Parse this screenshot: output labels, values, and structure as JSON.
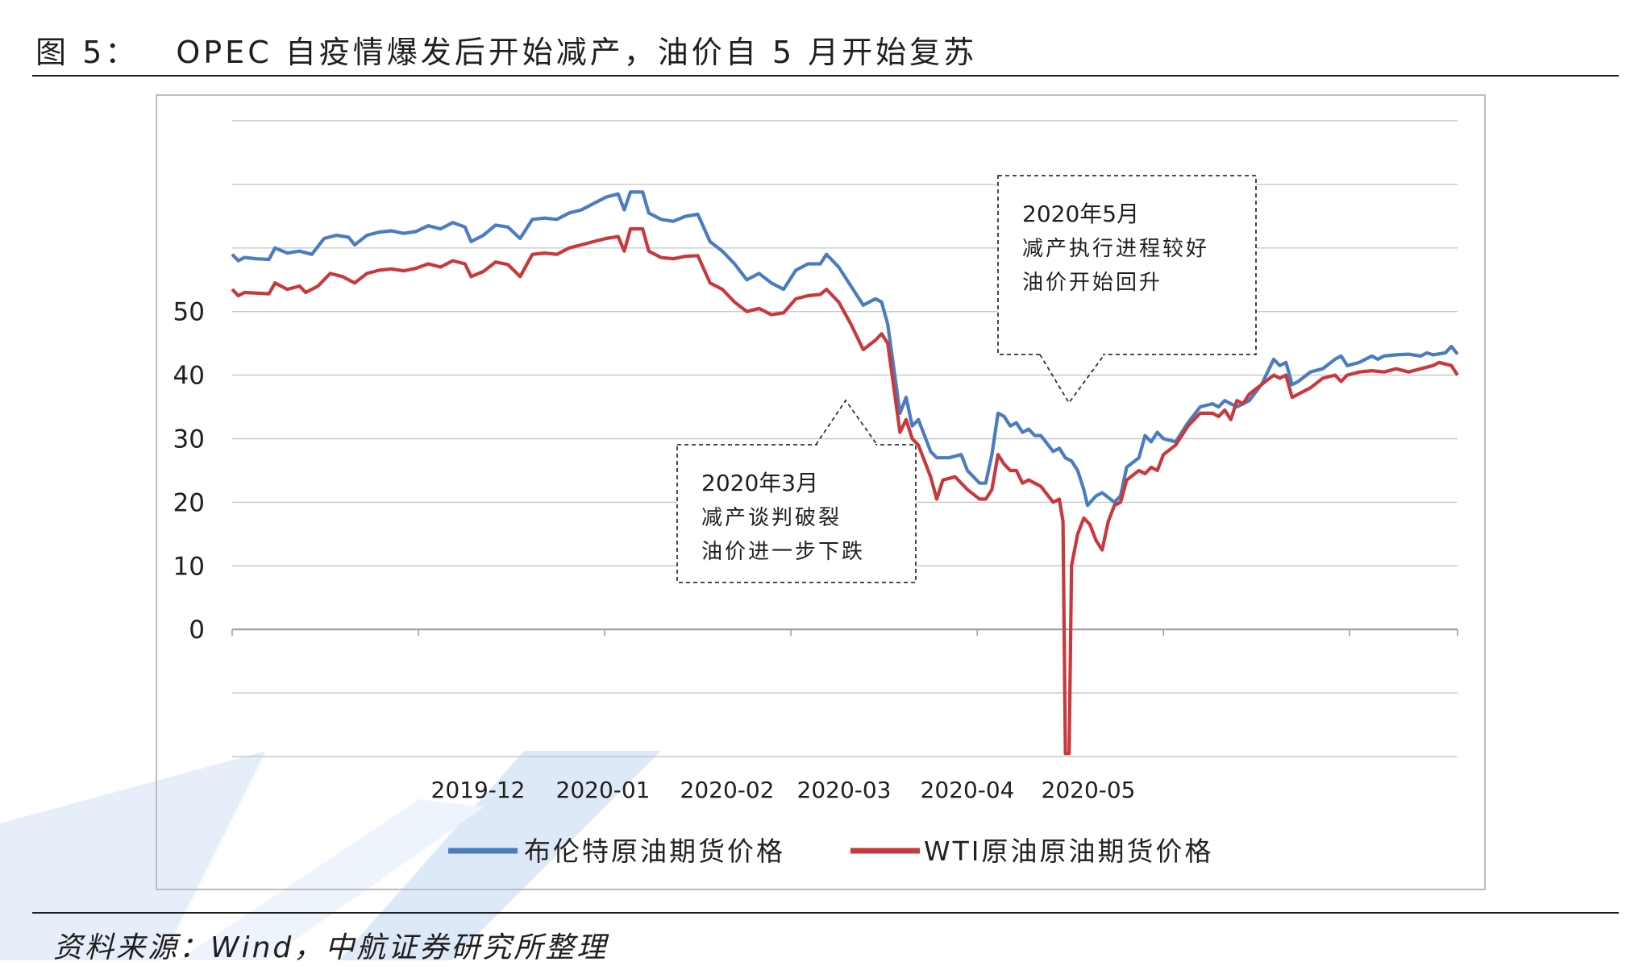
{
  "figure": {
    "number_label": "图 5：",
    "title": "OPEC 自疫情爆发后开始减产，油价自 5 月开始复苏"
  },
  "source_note": "资料来源：Wind，中航证券研究所整理",
  "colors": {
    "brent": "#4a7cc0",
    "wti": "#c8383c",
    "grid": "#c8c8c8",
    "axis": "#9a9a9a"
  },
  "chart_data": {
    "type": "line",
    "title": "",
    "xlabel": "",
    "ylabel": "",
    "ylim": [
      -20,
      80
    ],
    "grid": true,
    "legend_placement": "bottom",
    "y_ticks": [
      {
        "v": 80,
        "label": "",
        "faded": true
      },
      {
        "v": 70,
        "label": "",
        "faded": true
      },
      {
        "v": 60,
        "label": "",
        "faded": true
      },
      {
        "v": 50,
        "label": "50"
      },
      {
        "v": 40,
        "label": "40"
      },
      {
        "v": 30,
        "label": "30"
      },
      {
        "v": 20,
        "label": "20"
      },
      {
        "v": 10,
        "label": "10"
      },
      {
        "v": 0,
        "label": "0"
      },
      {
        "v": -10,
        "label": "",
        "faded": true
      },
      {
        "v": -20,
        "label": "",
        "faded": true
      }
    ],
    "x_ticks": [
      {
        "x": 0,
        "label": "",
        "faded": true
      },
      {
        "x": 1,
        "label": "",
        "faded": true
      },
      {
        "x": 2,
        "label": "2019-12"
      },
      {
        "x": 3,
        "label": "2020-01"
      },
      {
        "x": 4,
        "label": "2020-02"
      },
      {
        "x": 5,
        "label": "2020-03"
      },
      {
        "x": 6,
        "label": "2020-04"
      },
      {
        "x": 7,
        "label": "2020-05"
      }
    ],
    "x_range": [
      0,
      10
    ],
    "series": [
      {
        "name": "布伦特原油期货价格",
        "color": "#4a7cc0",
        "points": [
          [
            0.0,
            59.0
          ],
          [
            0.05,
            58.0
          ],
          [
            0.1,
            58.5
          ],
          [
            0.2,
            58.3
          ],
          [
            0.3,
            58.2
          ],
          [
            0.35,
            60.0
          ],
          [
            0.45,
            59.2
          ],
          [
            0.55,
            59.5
          ],
          [
            0.65,
            59.0
          ],
          [
            0.75,
            61.5
          ],
          [
            0.85,
            62.0
          ],
          [
            0.95,
            61.7
          ],
          [
            1.0,
            60.5
          ],
          [
            1.1,
            62.0
          ],
          [
            1.2,
            62.5
          ],
          [
            1.3,
            62.7
          ],
          [
            1.4,
            62.3
          ],
          [
            1.5,
            62.6
          ],
          [
            1.6,
            63.5
          ],
          [
            1.7,
            63.0
          ],
          [
            1.8,
            64.0
          ],
          [
            1.9,
            63.3
          ],
          [
            1.95,
            61.0
          ],
          [
            2.05,
            62.0
          ],
          [
            2.15,
            63.6
          ],
          [
            2.25,
            63.3
          ],
          [
            2.35,
            61.5
          ],
          [
            2.45,
            64.5
          ],
          [
            2.55,
            64.7
          ],
          [
            2.65,
            64.5
          ],
          [
            2.75,
            65.5
          ],
          [
            2.85,
            66.0
          ],
          [
            2.95,
            67.0
          ],
          [
            3.05,
            68.0
          ],
          [
            3.15,
            68.5
          ],
          [
            3.2,
            66.0
          ],
          [
            3.25,
            68.8
          ],
          [
            3.35,
            68.8
          ],
          [
            3.4,
            65.5
          ],
          [
            3.5,
            64.5
          ],
          [
            3.6,
            64.2
          ],
          [
            3.7,
            65.0
          ],
          [
            3.8,
            65.3
          ],
          [
            3.9,
            61.0
          ],
          [
            4.0,
            59.5
          ],
          [
            4.1,
            57.5
          ],
          [
            4.2,
            55.0
          ],
          [
            4.3,
            56.0
          ],
          [
            4.4,
            54.5
          ],
          [
            4.5,
            53.5
          ],
          [
            4.6,
            56.5
          ],
          [
            4.7,
            57.5
          ],
          [
            4.8,
            57.5
          ],
          [
            4.85,
            59.0
          ],
          [
            4.95,
            57.0
          ],
          [
            5.05,
            54.0
          ],
          [
            5.15,
            51.0
          ],
          [
            5.25,
            52.0
          ],
          [
            5.3,
            51.5
          ],
          [
            5.35,
            48.0
          ],
          [
            5.45,
            34.0
          ],
          [
            5.5,
            36.5
          ],
          [
            5.55,
            32.0
          ],
          [
            5.6,
            33.0
          ],
          [
            5.7,
            28.0
          ],
          [
            5.75,
            27.0
          ],
          [
            5.85,
            27.0
          ],
          [
            5.95,
            27.5
          ],
          [
            6.0,
            25.0
          ],
          [
            6.1,
            23.0
          ],
          [
            6.15,
            23.0
          ],
          [
            6.2,
            27.5
          ],
          [
            6.25,
            34.0
          ],
          [
            6.3,
            33.5
          ],
          [
            6.35,
            32.0
          ],
          [
            6.4,
            32.5
          ],
          [
            6.45,
            31.0
          ],
          [
            6.5,
            31.5
          ],
          [
            6.55,
            30.5
          ],
          [
            6.6,
            30.5
          ],
          [
            6.7,
            28.0
          ],
          [
            6.75,
            28.5
          ],
          [
            6.8,
            27.0
          ],
          [
            6.85,
            26.5
          ],
          [
            6.9,
            25.0
          ],
          [
            6.95,
            22.0
          ],
          [
            6.98,
            19.5
          ],
          [
            7.05,
            21.0
          ],
          [
            7.1,
            21.5
          ],
          [
            7.2,
            20.0
          ],
          [
            7.25,
            21.0
          ],
          [
            7.3,
            25.5
          ],
          [
            7.4,
            27.0
          ],
          [
            7.45,
            30.5
          ],
          [
            7.5,
            29.5
          ],
          [
            7.55,
            31.0
          ],
          [
            7.6,
            30.0
          ],
          [
            7.7,
            29.5
          ],
          [
            7.8,
            32.5
          ],
          [
            7.9,
            35.0
          ],
          [
            8.0,
            35.5
          ],
          [
            8.05,
            35.0
          ],
          [
            8.1,
            36.0
          ],
          [
            8.15,
            35.5
          ],
          [
            8.2,
            35.0
          ],
          [
            8.25,
            35.5
          ],
          [
            8.3,
            36.0
          ],
          [
            8.4,
            38.5
          ],
          [
            8.5,
            42.5
          ],
          [
            8.55,
            41.5
          ],
          [
            8.6,
            42.0
          ],
          [
            8.65,
            38.5
          ],
          [
            8.7,
            39.0
          ],
          [
            8.8,
            40.5
          ],
          [
            8.9,
            41.0
          ],
          [
            9.0,
            42.5
          ],
          [
            9.05,
            43.0
          ],
          [
            9.1,
            41.5
          ],
          [
            9.2,
            42.0
          ],
          [
            9.3,
            43.0
          ],
          [
            9.35,
            42.5
          ],
          [
            9.4,
            43.0
          ],
          [
            9.5,
            43.2
          ],
          [
            9.6,
            43.3
          ],
          [
            9.7,
            43.0
          ],
          [
            9.75,
            43.5
          ],
          [
            9.8,
            43.2
          ],
          [
            9.9,
            43.5
          ],
          [
            9.95,
            44.5
          ],
          [
            10.0,
            43.3
          ]
        ]
      },
      {
        "name": "WTI原油原油期货价格",
        "color": "#c8383c",
        "points": [
          [
            0.0,
            53.5
          ],
          [
            0.05,
            52.5
          ],
          [
            0.1,
            53.0
          ],
          [
            0.2,
            52.9
          ],
          [
            0.3,
            52.8
          ],
          [
            0.35,
            54.5
          ],
          [
            0.45,
            53.5
          ],
          [
            0.55,
            54.0
          ],
          [
            0.6,
            53.0
          ],
          [
            0.7,
            54.0
          ],
          [
            0.8,
            56.0
          ],
          [
            0.9,
            55.5
          ],
          [
            1.0,
            54.5
          ],
          [
            1.1,
            56.0
          ],
          [
            1.2,
            56.5
          ],
          [
            1.3,
            56.7
          ],
          [
            1.4,
            56.4
          ],
          [
            1.5,
            56.8
          ],
          [
            1.6,
            57.5
          ],
          [
            1.7,
            57.0
          ],
          [
            1.8,
            58.0
          ],
          [
            1.9,
            57.5
          ],
          [
            1.95,
            55.5
          ],
          [
            2.05,
            56.3
          ],
          [
            2.15,
            57.8
          ],
          [
            2.25,
            57.4
          ],
          [
            2.35,
            55.5
          ],
          [
            2.45,
            59.0
          ],
          [
            2.55,
            59.2
          ],
          [
            2.65,
            59.0
          ],
          [
            2.75,
            60.0
          ],
          [
            2.85,
            60.5
          ],
          [
            2.95,
            61.0
          ],
          [
            3.05,
            61.5
          ],
          [
            3.15,
            61.8
          ],
          [
            3.2,
            59.5
          ],
          [
            3.25,
            63.0
          ],
          [
            3.35,
            63.0
          ],
          [
            3.4,
            59.5
          ],
          [
            3.5,
            58.5
          ],
          [
            3.6,
            58.3
          ],
          [
            3.7,
            58.7
          ],
          [
            3.8,
            58.8
          ],
          [
            3.9,
            54.5
          ],
          [
            4.0,
            53.5
          ],
          [
            4.1,
            51.5
          ],
          [
            4.2,
            50.0
          ],
          [
            4.3,
            50.5
          ],
          [
            4.4,
            49.5
          ],
          [
            4.5,
            49.8
          ],
          [
            4.6,
            52.0
          ],
          [
            4.7,
            52.5
          ],
          [
            4.8,
            52.7
          ],
          [
            4.85,
            53.5
          ],
          [
            4.95,
            51.5
          ],
          [
            5.05,
            48.0
          ],
          [
            5.15,
            44.0
          ],
          [
            5.25,
            45.5
          ],
          [
            5.3,
            46.5
          ],
          [
            5.35,
            45.0
          ],
          [
            5.45,
            31.0
          ],
          [
            5.5,
            33.0
          ],
          [
            5.55,
            30.0
          ],
          [
            5.6,
            29.0
          ],
          [
            5.7,
            24.0
          ],
          [
            5.75,
            20.5
          ],
          [
            5.8,
            23.5
          ],
          [
            5.9,
            24.0
          ],
          [
            6.0,
            22.0
          ],
          [
            6.1,
            20.5
          ],
          [
            6.15,
            20.5
          ],
          [
            6.2,
            22.0
          ],
          [
            6.25,
            27.5
          ],
          [
            6.3,
            26.0
          ],
          [
            6.35,
            25.0
          ],
          [
            6.4,
            25.0
          ],
          [
            6.45,
            23.0
          ],
          [
            6.5,
            23.5
          ],
          [
            6.55,
            23.0
          ],
          [
            6.6,
            22.5
          ],
          [
            6.7,
            20.0
          ],
          [
            6.75,
            20.5
          ],
          [
            6.78,
            17.0
          ],
          [
            6.8,
            -19.5
          ],
          [
            6.83,
            -19.5
          ],
          [
            6.85,
            10.0
          ],
          [
            6.9,
            15.0
          ],
          [
            6.95,
            17.5
          ],
          [
            7.0,
            16.5
          ],
          [
            7.05,
            14.0
          ],
          [
            7.1,
            12.5
          ],
          [
            7.15,
            17.0
          ],
          [
            7.2,
            19.5
          ],
          [
            7.25,
            20.0
          ],
          [
            7.3,
            23.5
          ],
          [
            7.4,
            25.0
          ],
          [
            7.45,
            24.5
          ],
          [
            7.5,
            25.5
          ],
          [
            7.55,
            25.0
          ],
          [
            7.6,
            27.5
          ],
          [
            7.7,
            29.0
          ],
          [
            7.8,
            32.0
          ],
          [
            7.9,
            34.0
          ],
          [
            8.0,
            34.0
          ],
          [
            8.05,
            33.5
          ],
          [
            8.1,
            34.5
          ],
          [
            8.15,
            33.0
          ],
          [
            8.2,
            36.0
          ],
          [
            8.25,
            35.5
          ],
          [
            8.3,
            37.0
          ],
          [
            8.4,
            38.5
          ],
          [
            8.5,
            40.0
          ],
          [
            8.55,
            39.5
          ],
          [
            8.6,
            40.0
          ],
          [
            8.65,
            36.5
          ],
          [
            8.7,
            37.0
          ],
          [
            8.8,
            38.0
          ],
          [
            8.9,
            39.5
          ],
          [
            9.0,
            40.0
          ],
          [
            9.05,
            39.0
          ],
          [
            9.1,
            40.0
          ],
          [
            9.2,
            40.5
          ],
          [
            9.3,
            40.7
          ],
          [
            9.4,
            40.5
          ],
          [
            9.5,
            41.0
          ],
          [
            9.6,
            40.5
          ],
          [
            9.7,
            41.0
          ],
          [
            9.8,
            41.5
          ],
          [
            9.85,
            42.0
          ],
          [
            9.95,
            41.5
          ],
          [
            10.0,
            40.0
          ]
        ]
      }
    ],
    "annotations": [
      {
        "id": "mar",
        "lines": [
          "2020年3月",
          "减产谈判破裂",
          "油价进一步下跌"
        ]
      },
      {
        "id": "may",
        "lines": [
          "2020年5月",
          "减产执行进程较好",
          "油价开始回升"
        ]
      }
    ]
  }
}
